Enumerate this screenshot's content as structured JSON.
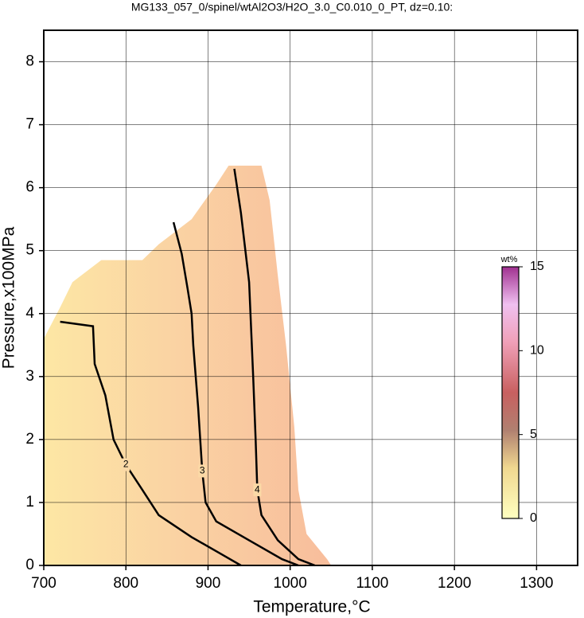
{
  "chart_data": {
    "type": "contour",
    "title": "MG133_057_0/spinel/wtAl2O3/H2O_3.0_C0.010_0_PT, dz=0.10:",
    "x_label": "Temperature,°C",
    "y_label": "Pressure,x100MPa",
    "xlim": [
      700,
      1350
    ],
    "ylim": [
      0,
      8.5
    ],
    "xticks": [
      700,
      800,
      900,
      1000,
      1100,
      1200,
      1300
    ],
    "yticks": [
      0,
      1,
      2,
      3,
      4,
      5,
      6,
      7,
      8
    ],
    "grid": true,
    "region": {
      "x": [
        700,
        720,
        735,
        770,
        820,
        840,
        880,
        910,
        925,
        965,
        975,
        985,
        995,
        1005,
        1010,
        1020,
        1045,
        1050,
        700
      ],
      "y": [
        3.6,
        4.1,
        4.5,
        4.85,
        4.85,
        5.1,
        5.5,
        6.05,
        6.35,
        6.35,
        5.8,
        4.6,
        3.5,
        2.2,
        1.2,
        0.5,
        0.1,
        0,
        0
      ]
    },
    "contours": [
      {
        "level": 2,
        "x": [
          720,
          760,
          762,
          775,
          785,
          800,
          820,
          840,
          880,
          920,
          940
        ],
        "y": [
          3.87,
          3.8,
          3.2,
          2.7,
          2.0,
          1.6,
          1.2,
          0.8,
          0.45,
          0.15,
          0
        ]
      },
      {
        "level": 3,
        "x": [
          858,
          868,
          875,
          880,
          882,
          888,
          893,
          897,
          910,
          950,
          990,
          1010
        ],
        "y": [
          5.45,
          4.95,
          4.4,
          4.0,
          3.5,
          2.5,
          1.5,
          1.0,
          0.7,
          0.4,
          0.1,
          0
        ]
      },
      {
        "level": 4,
        "x": [
          932,
          940,
          950,
          955,
          958,
          960,
          965,
          985,
          1010,
          1030
        ],
        "y": [
          6.3,
          5.6,
          4.5,
          3.0,
          2.0,
          1.2,
          0.8,
          0.4,
          0.1,
          0
        ]
      }
    ],
    "colorbar": {
      "label": "wt%",
      "clim": [
        0,
        15
      ],
      "ticks": [
        0,
        5,
        10,
        15
      ]
    }
  }
}
